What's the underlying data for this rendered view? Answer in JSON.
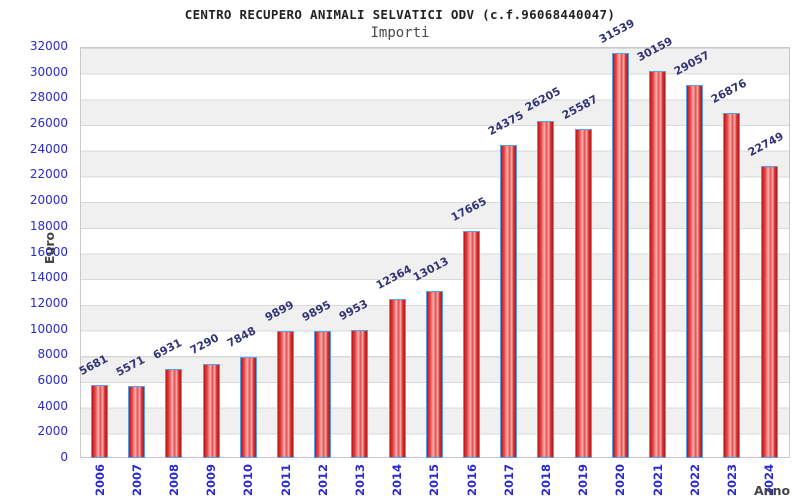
{
  "chart_data": {
    "type": "bar",
    "title": "CENTRO RECUPERO ANIMALI SELVATICI ODV (c.f.96068440047)",
    "subtitle": "Importi",
    "xlabel": "Anno",
    "ylabel": "Euro",
    "categories": [
      "2006",
      "2007",
      "2008",
      "2009",
      "2010",
      "2011",
      "2012",
      "2013",
      "2014",
      "2015",
      "2016",
      "2017",
      "2018",
      "2019",
      "2020",
      "2021",
      "2022",
      "2023",
      "2024"
    ],
    "values": [
      5681,
      5571,
      6931,
      7290,
      7848,
      9899,
      9895,
      9953,
      12364,
      13013,
      17665,
      24375,
      26205,
      25587,
      31539,
      30159,
      29057,
      26876,
      22749
    ],
    "ylim": [
      0,
      32000
    ],
    "ytick_step": 2000,
    "grid": "horizontal gridlines with alternating gray/white bands",
    "legend_position": "none",
    "colors": {
      "bar_edge": "#bb1717",
      "bar_highlight": "#ffb0b0",
      "bar_border": "#55a0e8",
      "value_label": "#333377",
      "axis_tick_text": "#2a2ad0",
      "band_gray": "#f0f0f0",
      "grid_line": "#d9d9d9",
      "frame": "#c9c9c9",
      "title_text": "#222222",
      "axis_name_text": "#454545"
    }
  }
}
